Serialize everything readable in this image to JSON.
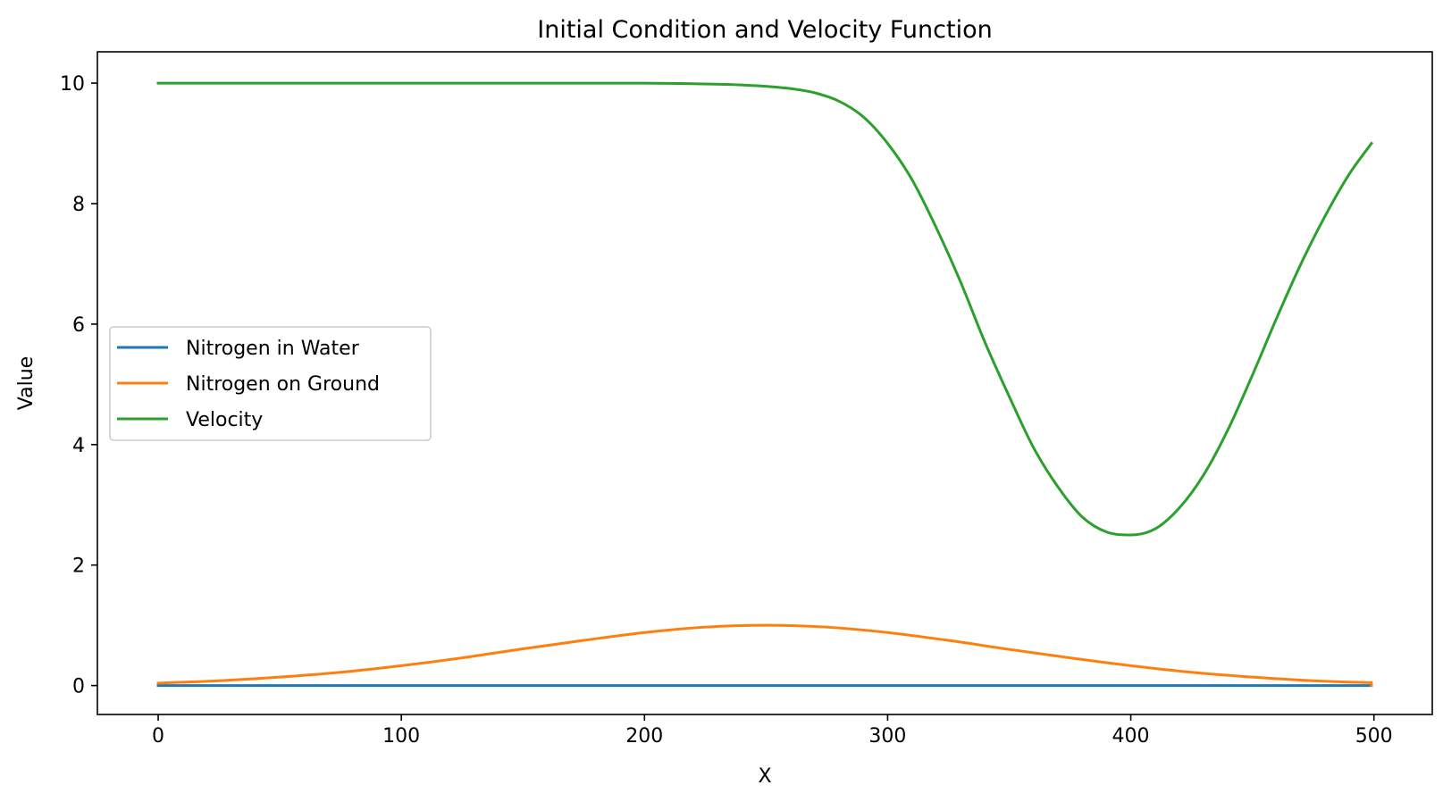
{
  "chart_data": {
    "type": "line",
    "title": "Initial Condition and Velocity Function",
    "xlabel": "X",
    "ylabel": "Value",
    "xlim": [
      -25,
      524
    ],
    "ylim": [
      -0.48,
      10.52
    ],
    "xticks": [
      0,
      100,
      200,
      300,
      400,
      500
    ],
    "yticks": [
      0,
      2,
      4,
      6,
      8,
      10
    ],
    "grid": false,
    "legend_position": "center-left",
    "series": [
      {
        "name": "Nitrogen in Water",
        "color": "#1f77b4",
        "x": [
          0,
          499
        ],
        "y": [
          0,
          0
        ]
      },
      {
        "name": "Nitrogen on Ground",
        "color": "#ff7f0e",
        "x": [
          0,
          25,
          50,
          75,
          100,
          125,
          150,
          175,
          200,
          225,
          250,
          275,
          300,
          325,
          350,
          375,
          400,
          425,
          450,
          475,
          499,
          499
        ],
        "y": [
          0.04,
          0.08,
          0.14,
          0.22,
          0.33,
          0.46,
          0.61,
          0.75,
          0.88,
          0.97,
          1.0,
          0.97,
          0.88,
          0.75,
          0.6,
          0.46,
          0.33,
          0.22,
          0.14,
          0.08,
          0.05,
          0
        ]
      },
      {
        "name": "Velocity",
        "color": "#2ca02c",
        "x": [
          0,
          50,
          100,
          150,
          200,
          220,
          240,
          260,
          270,
          280,
          290,
          300,
          310,
          320,
          330,
          340,
          350,
          360,
          370,
          380,
          390,
          400,
          410,
          420,
          430,
          440,
          450,
          460,
          470,
          480,
          490,
          499
        ],
        "y": [
          10.0,
          10.0,
          10.0,
          10.0,
          10.0,
          9.99,
          9.97,
          9.91,
          9.84,
          9.7,
          9.44,
          9.0,
          8.4,
          7.6,
          6.7,
          5.7,
          4.8,
          3.95,
          3.3,
          2.8,
          2.55,
          2.5,
          2.6,
          2.95,
          3.5,
          4.25,
          5.15,
          6.1,
          7.0,
          7.8,
          8.5,
          9.0
        ]
      }
    ]
  }
}
